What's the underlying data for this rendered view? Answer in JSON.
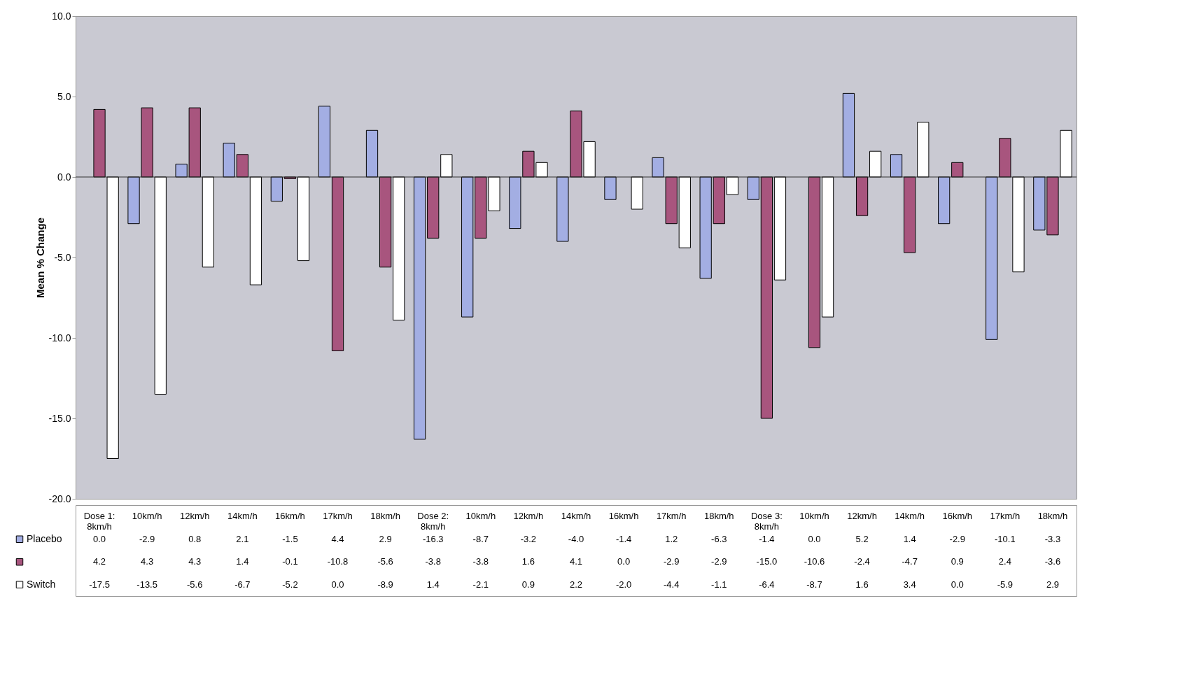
{
  "chart_data": {
    "type": "bar",
    "ylabel": "Mean % Change",
    "categories": [
      "Dose 1:\n8km/h",
      "10km/h",
      "12km/h",
      "14km/h",
      "16km/h",
      "17km/h",
      "18km/h",
      "Dose 2:\n8km/h",
      "10km/h",
      "12km/h",
      "14km/h",
      "16km/h",
      "17km/h",
      "18km/h",
      "Dose 3:\n8km/h",
      "10km/h",
      "12km/h",
      "14km/h",
      "16km/h",
      "17km/h",
      "18km/h"
    ],
    "series": [
      {
        "name": "Placebo",
        "color": "#a3aee3",
        "values": [
          0.0,
          -2.9,
          0.8,
          2.1,
          -1.5,
          4.4,
          2.9,
          -16.3,
          -8.7,
          -3.2,
          -4.0,
          -1.4,
          1.2,
          -6.3,
          -1.4,
          0.0,
          5.2,
          1.4,
          -2.9,
          -10.1,
          -3.3
        ],
        "value_labels": [
          "0.0",
          "-2.9",
          "0.8",
          "2.1",
          "-1.5",
          "4.4",
          "2.9",
          "-16.3",
          "-8.7",
          "-3.2",
          "-4.0",
          "-1.4",
          "1.2",
          "-6.3",
          "-1.4",
          "0.0",
          "5.2",
          "1.4",
          "-2.9",
          "-10.1",
          "-3.3"
        ]
      },
      {
        "color": "#a8557e",
        "values": [
          4.2,
          4.3,
          4.3,
          1.4,
          -0.1,
          -10.8,
          -5.6,
          -3.8,
          -3.8,
          1.6,
          4.1,
          0.0,
          -2.9,
          -2.9,
          -15.0,
          -10.6,
          -2.4,
          -4.7,
          0.9,
          2.4,
          -3.6
        ],
        "value_labels": [
          "4.2",
          "4.3",
          "4.3",
          "1.4",
          "-0.1",
          "-10.8",
          "-5.6",
          "-3.8",
          "-3.8",
          "1.6",
          "4.1",
          "0.0",
          "-2.9",
          "-2.9",
          "-15.0",
          "-10.6",
          "-2.4",
          "-4.7",
          "0.9",
          "2.4",
          "-3.6"
        ]
      },
      {
        "name": "Switch",
        "color": "#ffffff",
        "values": [
          -17.5,
          -13.5,
          -5.6,
          -6.7,
          -5.2,
          0.0,
          -8.9,
          1.4,
          -2.1,
          0.9,
          2.2,
          -2.0,
          -4.4,
          -1.1,
          -6.4,
          -8.7,
          1.6,
          3.4,
          0.0,
          -5.9,
          2.9
        ],
        "value_labels": [
          "-17.5",
          "-13.5",
          "-5.6",
          "-6.7",
          "-5.2",
          "0.0",
          "-8.9",
          "1.4",
          "-2.1",
          "0.9",
          "2.2",
          "-2.0",
          "-4.4",
          "-1.1",
          "-6.4",
          "-8.7",
          "1.6",
          "3.4",
          "0.0",
          "-5.9",
          "2.9"
        ]
      }
    ],
    "ylim": [
      -20,
      10
    ],
    "yticks": [
      {
        "value": -20,
        "label": "-20.0"
      },
      {
        "value": -15,
        "label": "-15.0"
      },
      {
        "value": -10,
        "label": "-10.0"
      },
      {
        "value": -5,
        "label": "-5.0"
      },
      {
        "value": 0,
        "label": "0.0"
      },
      {
        "value": 5,
        "label": "5.0"
      },
      {
        "value": 10,
        "label": "10.0"
      }
    ],
    "ref_lines": [
      {
        "axis": "y",
        "value": 0
      }
    ],
    "legend": "bottom left"
  }
}
